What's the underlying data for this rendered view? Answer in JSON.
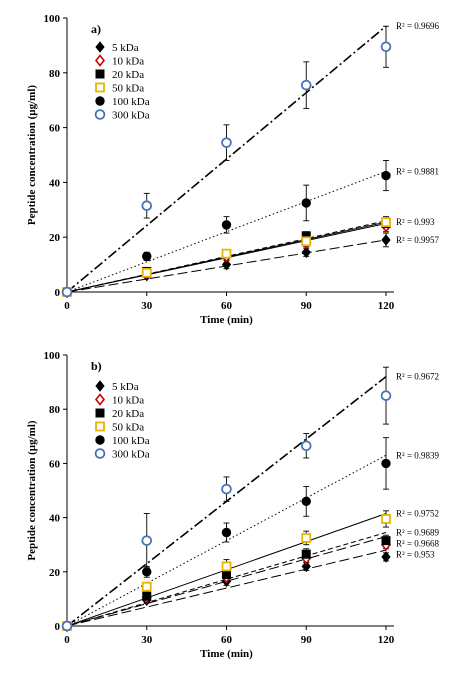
{
  "chart_data": [
    {
      "type": "scatter",
      "panel_label": "a)",
      "xlabel": "Time (min)",
      "ylabel": "Peptide concentration (µg/ml)",
      "xlim": [
        0,
        120
      ],
      "ylim": [
        0,
        100
      ],
      "xticks": [
        0,
        30,
        60,
        90,
        120
      ],
      "yticks": [
        0,
        20,
        40,
        60,
        80,
        100
      ],
      "legend_position": "top-left",
      "x": [
        0,
        30,
        60,
        90,
        120
      ],
      "series": [
        {
          "name": "5 kDa",
          "marker": "diamond-filled",
          "color": "#000000",
          "line": "long-dash",
          "values": [
            0,
            6,
            10,
            14.5,
            19
          ],
          "errors": [
            0,
            0.8,
            1.5,
            1.5,
            2.5
          ],
          "r2_label": "R² = 0.9957"
        },
        {
          "name": "10 kDa",
          "marker": "diamond-open",
          "color": "#cc0000",
          "line": "solid",
          "values": [
            0,
            7,
            13,
            18,
            24
          ],
          "errors": [
            0,
            0.8,
            1.2,
            1.5,
            2.0
          ],
          "r2_label": ""
        },
        {
          "name": "20 kDa",
          "marker": "square-filled",
          "color": "#000000",
          "line": "solid",
          "values": [
            0,
            7.5,
            14,
            20.5,
            25
          ],
          "errors": [
            0,
            0.8,
            1.2,
            1.5,
            2.0
          ],
          "r2_label": "R² = 0.993"
        },
        {
          "name": "50 kDa",
          "marker": "square-open",
          "color": "#e8b400",
          "line": "short-dash",
          "values": [
            0,
            7,
            14,
            18.5,
            25.5
          ],
          "errors": [
            0,
            0.8,
            1.2,
            1.5,
            2.0
          ],
          "r2_label": ""
        },
        {
          "name": "100 kDa",
          "marker": "circle-filled",
          "color": "#000000",
          "line": "dotted",
          "values": [
            0,
            13,
            24.5,
            32.5,
            42.5
          ],
          "errors": [
            0,
            1.5,
            3,
            6.5,
            5.5
          ],
          "r2_label": "R² = 0.9881"
        },
        {
          "name": "300 kDa",
          "marker": "circle-open",
          "color": "#4a72b8",
          "line": "dash-dot",
          "values": [
            0,
            31.5,
            54.5,
            75.5,
            89.5
          ],
          "errors": [
            0,
            4.5,
            6.5,
            8.5,
            7.5
          ],
          "r2_label": "R² = 0.9696"
        }
      ],
      "trend_ends": {
        "5 kDa": 19,
        "10 kDa": 25,
        "20 kDa": 25.5,
        "50 kDa": 26,
        "100 kDa": 44,
        "300 kDa": 97
      }
    },
    {
      "type": "scatter",
      "panel_label": "b)",
      "xlabel": "Time (min)",
      "ylabel": "Peptide concentration (µg/ml)",
      "xlim": [
        0,
        120
      ],
      "ylim": [
        0,
        100
      ],
      "xticks": [
        0,
        30,
        60,
        90,
        120
      ],
      "yticks": [
        0,
        20,
        40,
        60,
        80,
        100
      ],
      "legend_position": "top-left",
      "x": [
        0,
        30,
        60,
        90,
        120
      ],
      "series": [
        {
          "name": "5 kDa",
          "marker": "diamond-filled",
          "color": "#000000",
          "line": "long-dash",
          "values": [
            0,
            9.5,
            16.5,
            22,
            25.5
          ],
          "errors": [
            0,
            1,
            1.5,
            1.5,
            1.5
          ],
          "r2_label": "R² = 0.953"
        },
        {
          "name": "10 kDa",
          "marker": "diamond-open",
          "color": "#cc0000",
          "line": "long-dash",
          "values": [
            0,
            10.5,
            18,
            25,
            30
          ],
          "errors": [
            0,
            1,
            1.5,
            1.5,
            1.5
          ],
          "r2_label": "R² = 0.9668"
        },
        {
          "name": "20 kDa",
          "marker": "square-filled",
          "color": "#000000",
          "line": "short-dash",
          "values": [
            0,
            11,
            19,
            26.5,
            31.5
          ],
          "errors": [
            0,
            1,
            1.5,
            2,
            2
          ],
          "r2_label": "R² = 0.9689"
        },
        {
          "name": "50 kDa",
          "marker": "square-open",
          "color": "#e8b400",
          "line": "solid",
          "values": [
            0,
            14.5,
            22,
            32.5,
            39.5
          ],
          "errors": [
            0,
            1.5,
            2.5,
            2.5,
            3
          ],
          "r2_label": "R² = 0.9752"
        },
        {
          "name": "100 kDa",
          "marker": "circle-filled",
          "color": "#000000",
          "line": "dotted",
          "values": [
            0,
            20,
            34.5,
            46,
            60
          ],
          "errors": [
            0,
            2,
            3.5,
            5.5,
            9.5
          ],
          "r2_label": "R² = 0.9839"
        },
        {
          "name": "300 kDa",
          "marker": "circle-open",
          "color": "#4a72b8",
          "line": "dash-dot",
          "values": [
            0,
            31.5,
            50.5,
            66.5,
            85
          ],
          "errors": [
            0,
            10,
            4.5,
            4.5,
            10.5
          ],
          "r2_label": "R² = 0.9672"
        }
      ],
      "trend_ends": {
        "5 kDa": 28,
        "10 kDa": 33,
        "20 kDa": 34.5,
        "50 kDa": 41.5,
        "100 kDa": 63,
        "300 kDa": 92
      }
    }
  ]
}
